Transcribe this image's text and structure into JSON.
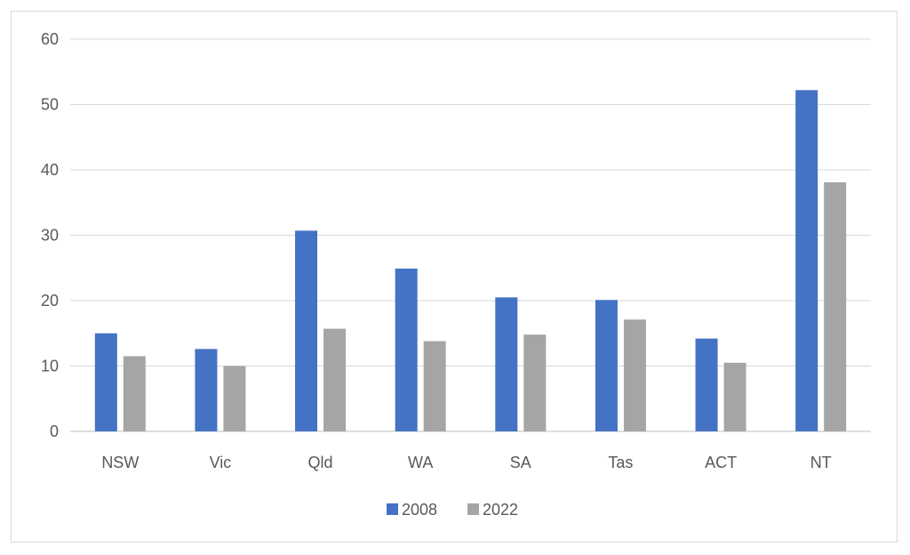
{
  "chart_data": {
    "type": "bar",
    "title": "",
    "xlabel": "",
    "ylabel": "",
    "categories": [
      "NSW",
      "Vic",
      "Qld",
      "WA",
      "SA",
      "Tas",
      "ACT",
      "NT"
    ],
    "series": [
      {
        "name": "2008",
        "color": "#4472C4",
        "values": [
          15.0,
          12.6,
          30.7,
          24.9,
          20.5,
          20.1,
          14.2,
          52.2
        ]
      },
      {
        "name": "2022",
        "color": "#A5A5A5",
        "values": [
          11.5,
          10.0,
          15.7,
          13.8,
          14.8,
          17.1,
          10.5,
          38.1
        ]
      }
    ],
    "ylim": [
      0,
      60
    ],
    "yticks": [
      "0",
      "10",
      "20",
      "30",
      "40",
      "50",
      "60"
    ],
    "grid": true,
    "legend_position": "bottom"
  }
}
